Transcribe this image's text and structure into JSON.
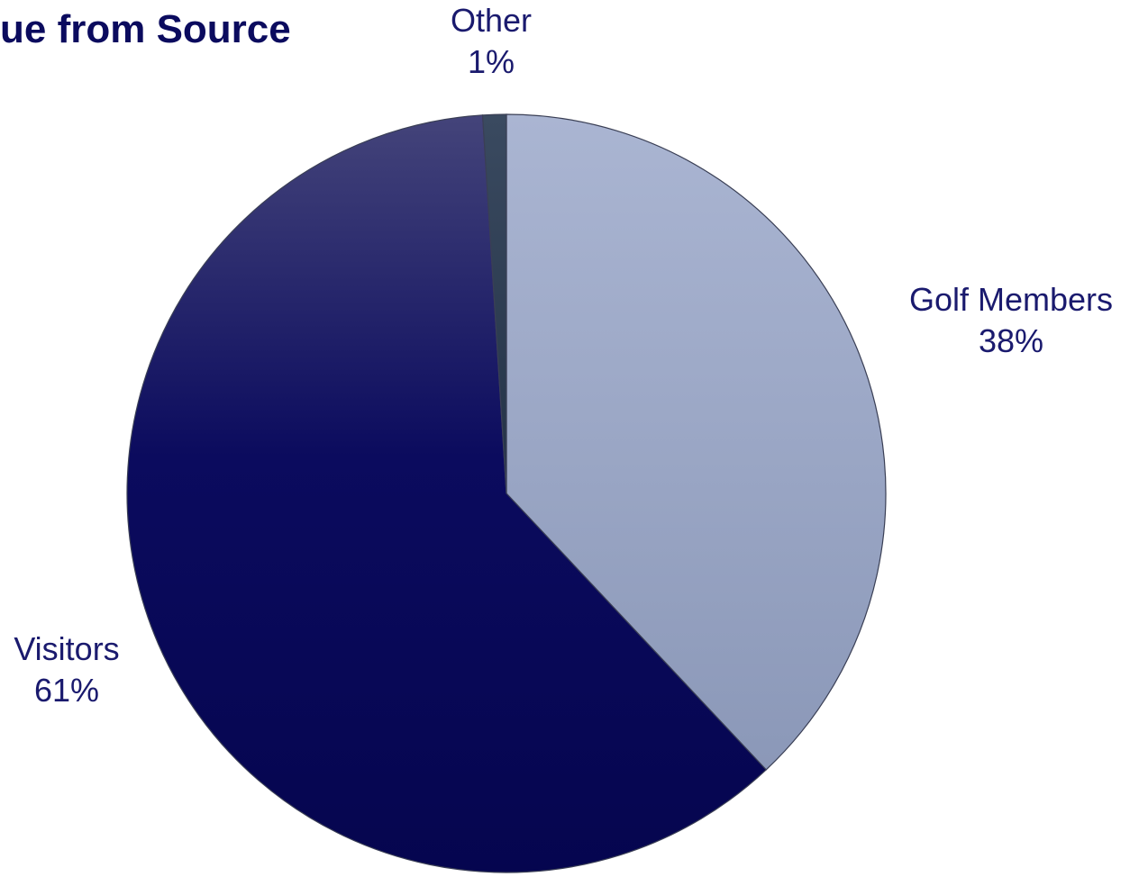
{
  "chart_data": {
    "type": "pie",
    "title": "ue from Source",
    "slices": [
      {
        "label": "Golf Members",
        "value": 38,
        "display": "38%",
        "color": "#98a6c6"
      },
      {
        "label": "Visitors",
        "value": 61,
        "display": "61%",
        "color": "#0b0b5e"
      },
      {
        "label": "Other",
        "value": 1,
        "display": "1%",
        "color": "#2b3a4e"
      }
    ],
    "legend": "none"
  }
}
